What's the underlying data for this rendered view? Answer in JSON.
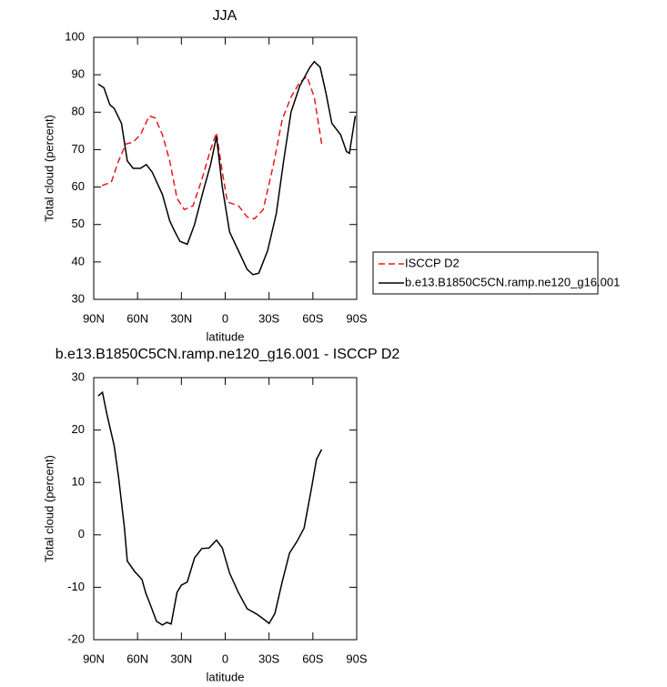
{
  "chart_data": [
    {
      "type": "line",
      "title": "JJA",
      "x_label": "latitude",
      "y_label": "Total cloud (percent)",
      "xlim": [
        90,
        -90
      ],
      "xticks": [
        {
          "value": 90,
          "label": "90N"
        },
        {
          "value": 60,
          "label": "60N"
        },
        {
          "value": 30,
          "label": "30N"
        },
        0,
        {
          "value": -30,
          "label": "30S"
        },
        {
          "value": -60,
          "label": "60S"
        },
        {
          "value": -90,
          "label": "90S"
        }
      ],
      "ylim": [
        30,
        100
      ],
      "yticks": [
        30,
        40,
        50,
        60,
        70,
        80,
        90,
        100
      ],
      "legend": "right",
      "series": [
        {
          "name": "ISCCP D2",
          "color": "#e41a1c",
          "line_style": "dashed",
          "x": [
            84.4,
            78,
            73,
            68,
            63,
            58,
            52,
            48,
            43,
            38,
            33,
            28,
            22,
            16,
            10,
            6,
            2,
            -1.5,
            -9,
            -15,
            -20,
            -26,
            -33,
            -39,
            -45,
            -51,
            -56,
            -61,
            -66
          ],
          "values": [
            60.4,
            61.3,
            67,
            71.5,
            72,
            74,
            79,
            78.5,
            74,
            67,
            57,
            54,
            55,
            62,
            70,
            74.5,
            64,
            56,
            55,
            52,
            51.5,
            54,
            66,
            78,
            84,
            88,
            89.5,
            84,
            71.5
          ]
        },
        {
          "name": "b.e13.B1850C5CN.ramp.ne120_g16.001",
          "color": "#000000",
          "line_style": "solid",
          "x": [
            87,
            83,
            79,
            76,
            71,
            67,
            63,
            58,
            54,
            50,
            43,
            38,
            35,
            31,
            26,
            21,
            15,
            10,
            6,
            2,
            -3,
            -9,
            -15,
            -19,
            -23,
            -29,
            -35,
            -40,
            -45,
            -51,
            -58,
            -61,
            -65,
            -69,
            -73,
            -79,
            -83,
            -85,
            -89
          ],
          "values": [
            87.5,
            86.5,
            82,
            81,
            77,
            67,
            65,
            65,
            66,
            64,
            58,
            51,
            48.5,
            45.5,
            44.7,
            50,
            59,
            66,
            73.5,
            60,
            48,
            43,
            38,
            36.6,
            37,
            43,
            53,
            67,
            80,
            87,
            92,
            93.5,
            92,
            85,
            77,
            74,
            69.5,
            69,
            79
          ]
        }
      ]
    },
    {
      "type": "line",
      "title": "b.e13.B1850C5CN.ramp.ne120_g16.001 - ISCCP D2",
      "x_label": "latitude",
      "y_label": "Total cloud (percent)",
      "xlim": [
        90,
        -90
      ],
      "xticks": [
        {
          "value": 90,
          "label": "90N"
        },
        {
          "value": 60,
          "label": "60N"
        },
        {
          "value": 30,
          "label": "30N"
        },
        0,
        {
          "value": -30,
          "label": "30S"
        },
        {
          "value": -60,
          "label": "60S"
        },
        {
          "value": -90,
          "label": "90S"
        }
      ],
      "ylim": [
        -20,
        30
      ],
      "yticks": [
        -20,
        -10,
        0,
        10,
        20,
        30
      ],
      "series": [
        {
          "color": "#000000",
          "line_style": "solid",
          "x": [
            87,
            84,
            81,
            76,
            73,
            69,
            67,
            62,
            57,
            54.5,
            51,
            47,
            43,
            40,
            37,
            33,
            30,
            26,
            21,
            16,
            11,
            6,
            2,
            -3,
            -9,
            -15,
            -21.5,
            -26,
            -30,
            -34,
            -39,
            -44,
            -49,
            -54,
            -59,
            -62.5,
            -66
          ],
          "values": [
            26.5,
            27.2,
            23,
            17,
            11,
            1.4,
            -5,
            -7,
            -8.5,
            -11,
            -13.5,
            -16.5,
            -17.2,
            -16.7,
            -17,
            -11,
            -9.6,
            -9,
            -4.4,
            -2.6,
            -2.5,
            -1,
            -2.5,
            -7.3,
            -11,
            -14.1,
            -15.1,
            -16,
            -16.9,
            -15,
            -9,
            -3.5,
            -1.3,
            1.3,
            8.8,
            14.4,
            16.3
          ]
        }
      ]
    }
  ]
}
